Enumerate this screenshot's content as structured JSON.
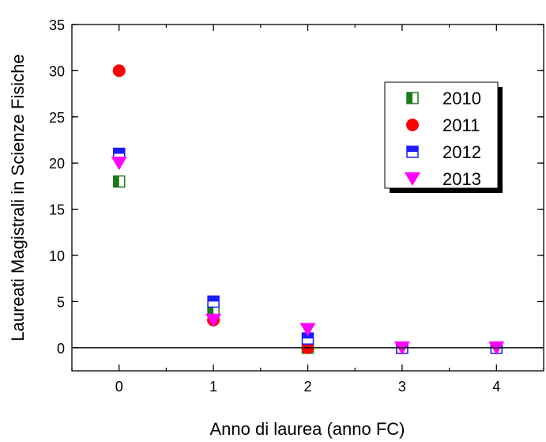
{
  "chart_data": {
    "type": "scatter",
    "xlabel": "Anno di laurea (anno FC)",
    "ylabel": "Laureati Magistrali in Scienze Fisiche",
    "xlim": [
      -0.5,
      4.5
    ],
    "ylim": [
      -2.5,
      35
    ],
    "x_ticks": [
      "0",
      "1",
      "2",
      "3",
      "4"
    ],
    "y_ticks": [
      "0",
      "5",
      "10",
      "15",
      "20",
      "25",
      "30",
      "35"
    ],
    "x_tick_values": [
      0,
      1,
      2,
      3,
      4
    ],
    "y_tick_values": [
      0,
      5,
      10,
      15,
      20,
      25,
      30,
      35
    ],
    "zero_line": true,
    "grid": false,
    "legend_position": "top-right",
    "series": [
      {
        "name": "2010",
        "marker": "square-half-left",
        "color": "#1a7a1a",
        "x": [
          0,
          1,
          2,
          3,
          4
        ],
        "y": [
          18,
          4,
          0,
          0,
          0
        ]
      },
      {
        "name": "2011",
        "marker": "circle",
        "color": "#ff0000",
        "x": [
          0,
          1,
          2,
          3,
          4
        ],
        "y": [
          30,
          3,
          0,
          0,
          0
        ]
      },
      {
        "name": "2012",
        "marker": "square-half-top",
        "color": "#1c1cff",
        "x": [
          0,
          1,
          2,
          3,
          4
        ],
        "y": [
          21,
          5,
          1,
          0,
          0
        ]
      },
      {
        "name": "2013",
        "marker": "triangle-down",
        "color": "#ff00ff",
        "x": [
          0,
          1,
          2,
          3,
          4
        ],
        "y": [
          20,
          3,
          2,
          0,
          0
        ]
      }
    ]
  }
}
